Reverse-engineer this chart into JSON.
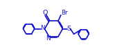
{
  "bg_color": "#ffffff",
  "line_color": "#1010cc",
  "text_color": "#1010cc",
  "line_width": 1.2,
  "font_size": 5.8,
  "fig_width": 1.89,
  "fig_height": 0.78,
  "dpi": 100,
  "xlim": [
    0.0,
    10.5
  ],
  "ylim": [
    0.5,
    4.5
  ]
}
